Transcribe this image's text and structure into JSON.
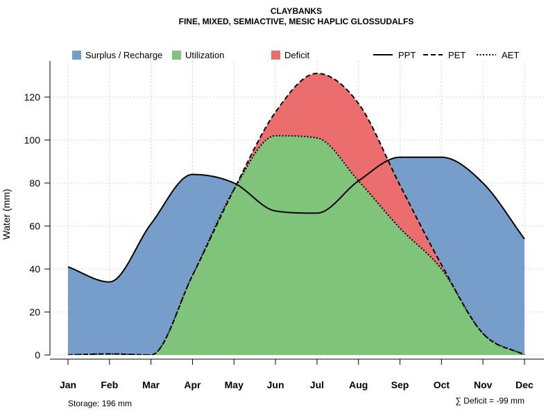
{
  "colors": {
    "surplus": "#779DCA",
    "utilization": "#80C47C",
    "deficit": "#EC6D6D",
    "grid": "#d3d3d3",
    "line": "#000000"
  },
  "chart_data": {
    "type": "area",
    "title": "CLAYBANKS",
    "subtitle": "FINE, MIXED, SEMIACTIVE, MESIC HAPLIC GLOSSUDALFS",
    "xlabel": "",
    "ylabel": "Water (mm)",
    "ylim": [
      0,
      135
    ],
    "yticks": [
      0,
      20,
      40,
      60,
      80,
      100,
      120
    ],
    "grid": true,
    "legend_position": "top",
    "categories": [
      "Jan",
      "Feb",
      "Mar",
      "Apr",
      "May",
      "Jun",
      "Jul",
      "Aug",
      "Sep",
      "Oct",
      "Nov",
      "Dec"
    ],
    "series": [
      {
        "name": "PPT",
        "style": "solid",
        "values": [
          41,
          34,
          61,
          84,
          80,
          67,
          66,
          81,
          92,
          92,
          80,
          54
        ]
      },
      {
        "name": "PET",
        "style": "dashed",
        "values": [
          0,
          0.5,
          0,
          37,
          77,
          113,
          131,
          117,
          79,
          42,
          10,
          0
        ]
      },
      {
        "name": "AET",
        "style": "dotted",
        "values": [
          0,
          0.5,
          0,
          37,
          77,
          102,
          101,
          81,
          59,
          40,
          10,
          0
        ]
      }
    ],
    "legend": [
      {
        "key": "surplus",
        "label": "Surplus / Recharge",
        "kind": "box"
      },
      {
        "key": "utilization",
        "label": "Utilization",
        "kind": "box"
      },
      {
        "key": "deficit",
        "label": "Deficit",
        "kind": "box"
      },
      {
        "key": "ppt",
        "label": "PPT",
        "kind": "solid"
      },
      {
        "key": "pet",
        "label": "PET",
        "kind": "dashed"
      },
      {
        "key": "aet",
        "label": "AET",
        "kind": "dotted"
      }
    ],
    "annotations": {
      "storage": "Storage: 196 mm",
      "deficit": "∑ Deficit = -99 mm"
    }
  }
}
